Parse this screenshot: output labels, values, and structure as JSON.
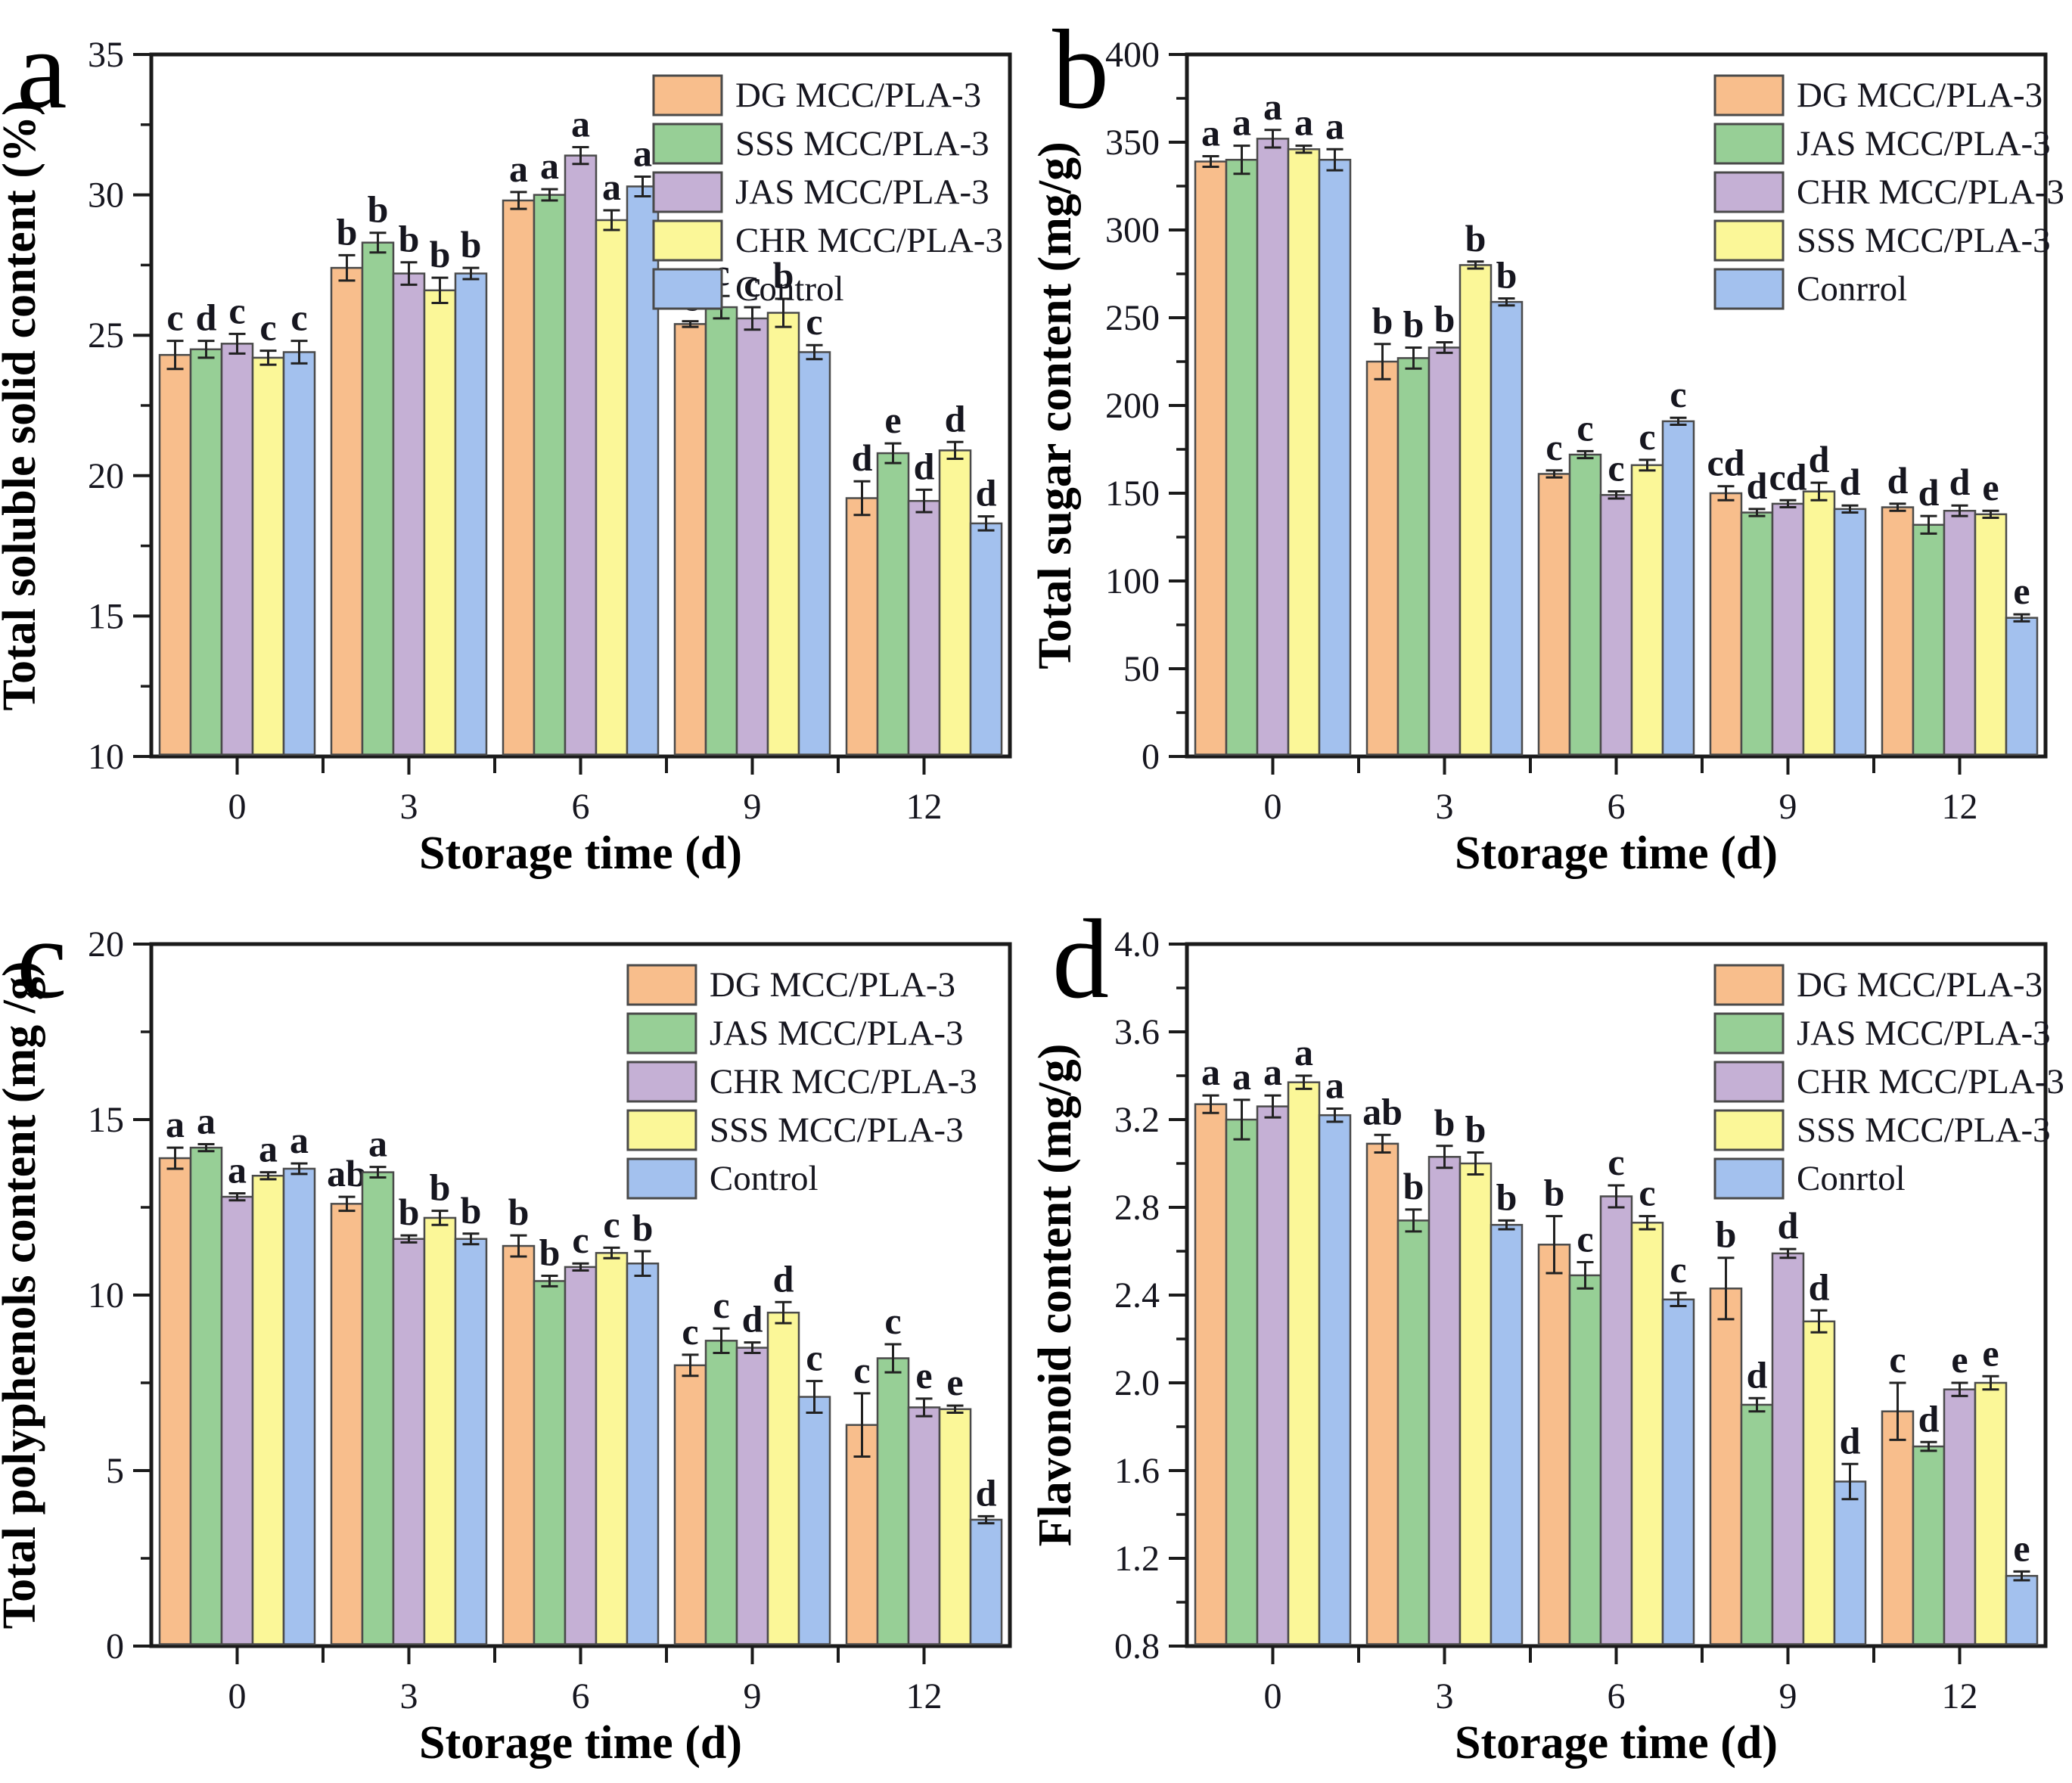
{
  "figure": {
    "xlabel": "Storage time (d)",
    "categories": [
      "0",
      "3",
      "6",
      "9",
      "12"
    ],
    "bar_outline_color": "#4a4a4a",
    "axis_color": "#1a1a1a",
    "text_color": "#16161f",
    "series_colors": [
      "#F8BE8C",
      "#97CF96",
      "#C5B0D5",
      "#FBF798",
      "#A3C1EE"
    ]
  },
  "chart_data": [
    {
      "type": "bar",
      "panel_letter": "a",
      "ylabel": "Total soluble solid content (%)",
      "xlabel": "Storage time (d)",
      "categories": [
        "0",
        "3",
        "6",
        "9",
        "12"
      ],
      "ylim": [
        10,
        35
      ],
      "ytick_step": 5,
      "yminor_step": 2.5,
      "ydecimals": 0,
      "grid": false,
      "legend_position": "upper-right-inside",
      "series": [
        {
          "name": "DG MCC/PLA-3",
          "color": "#F8BE8C",
          "values": [
            24.3,
            27.4,
            29.8,
            25.4,
            19.2
          ],
          "errors": [
            0.5,
            0.45,
            0.3,
            0.1,
            0.6
          ],
          "letters": [
            "c",
            "b",
            "a",
            "c",
            "d"
          ]
        },
        {
          "name": "SSS MCC/PLA-3",
          "color": "#97CF96",
          "values": [
            24.5,
            28.3,
            30.0,
            26.0,
            20.8
          ],
          "errors": [
            0.3,
            0.35,
            0.2,
            0.4,
            0.35
          ],
          "letters": [
            "d",
            "b",
            "a",
            "c",
            "e"
          ]
        },
        {
          "name": "JAS MCC/PLA-3",
          "color": "#C5B0D5",
          "values": [
            24.7,
            27.2,
            31.4,
            25.6,
            19.1
          ],
          "errors": [
            0.35,
            0.4,
            0.3,
            0.4,
            0.4
          ],
          "letters": [
            "c",
            "b",
            "a",
            "c",
            "d"
          ]
        },
        {
          "name": "CHR MCC/PLA-3",
          "color": "#FBF798",
          "values": [
            24.2,
            26.6,
            29.1,
            25.8,
            20.9
          ],
          "errors": [
            0.25,
            0.45,
            0.35,
            0.5,
            0.3
          ],
          "letters": [
            "c",
            "b",
            "a",
            "b",
            "d"
          ]
        },
        {
          "name": "Control",
          "color": "#A3C1EE",
          "values": [
            24.4,
            27.2,
            30.3,
            24.4,
            18.3
          ],
          "errors": [
            0.4,
            0.2,
            0.35,
            0.25,
            0.25
          ],
          "letters": [
            "c",
            "b",
            "a",
            "c",
            "d"
          ]
        }
      ]
    },
    {
      "type": "bar",
      "panel_letter": "b",
      "ylabel": "Total sugar content (mg/g)",
      "xlabel": "Storage time (d)",
      "categories": [
        "0",
        "3",
        "6",
        "9",
        "12"
      ],
      "ylim": [
        0,
        400
      ],
      "ytick_step": 50,
      "yminor_step": 25,
      "ydecimals": 0,
      "grid": false,
      "legend_position": "upper-right-inside",
      "series": [
        {
          "name": "DG MCC/PLA-3",
          "color": "#F8BE8C",
          "values": [
            339,
            225,
            161,
            150,
            142
          ],
          "errors": [
            3,
            10,
            2,
            4,
            2
          ],
          "letters": [
            "a",
            "b",
            "c",
            "cd",
            "d"
          ]
        },
        {
          "name": "JAS  MCC/PLA-3",
          "color": "#97CF96",
          "values": [
            340,
            227,
            172,
            139,
            132
          ],
          "errors": [
            8,
            6,
            2,
            2,
            5
          ],
          "letters": [
            "a",
            "b",
            "c",
            "d",
            "d"
          ]
        },
        {
          "name": "CHR  MCC/PLA-3",
          "color": "#C5B0D5",
          "values": [
            352,
            233,
            149,
            144,
            140
          ],
          "errors": [
            5,
            3,
            2,
            2,
            3
          ],
          "letters": [
            "a",
            "b",
            "c",
            "cd",
            "d"
          ]
        },
        {
          "name": "SSS  MCC/PLA-3",
          "color": "#FBF798",
          "values": [
            346,
            280,
            166,
            151,
            138
          ],
          "errors": [
            2,
            2,
            3,
            5,
            2
          ],
          "letters": [
            "a",
            "b",
            "c",
            "d",
            "e"
          ]
        },
        {
          "name": "Conrrol",
          "color": "#A3C1EE",
          "values": [
            340,
            259,
            191,
            141,
            79
          ],
          "errors": [
            6,
            2,
            2,
            2,
            2
          ],
          "letters": [
            "a",
            "b",
            "c",
            "d",
            "e"
          ]
        }
      ]
    },
    {
      "type": "bar",
      "panel_letter": "c",
      "ylabel": "Total polyphenols content (mg /g)",
      "xlabel": "Storage time (d)",
      "categories": [
        "0",
        "3",
        "6",
        "9",
        "12"
      ],
      "ylim": [
        0,
        20
      ],
      "ytick_step": 5,
      "yminor_step": 2.5,
      "ydecimals": 0,
      "grid": false,
      "legend_position": "upper-right-inside",
      "series": [
        {
          "name": "DG MCC/PLA-3",
          "color": "#F8BE8C",
          "values": [
            13.9,
            12.6,
            11.4,
            8.0,
            6.3
          ],
          "errors": [
            0.3,
            0.2,
            0.3,
            0.3,
            0.9
          ],
          "letters": [
            "a",
            "ab",
            "b",
            "c",
            "c"
          ]
        },
        {
          "name": "JAS MCC/PLA-3",
          "color": "#97CF96",
          "values": [
            14.2,
            13.5,
            10.4,
            8.7,
            8.2
          ],
          "errors": [
            0.1,
            0.15,
            0.15,
            0.35,
            0.4
          ],
          "letters": [
            "a",
            "a",
            "b",
            "c",
            "c"
          ]
        },
        {
          "name": "CHR MCC/PLA-3",
          "color": "#C5B0D5",
          "values": [
            12.8,
            11.6,
            10.8,
            8.5,
            6.8
          ],
          "errors": [
            0.1,
            0.1,
            0.1,
            0.15,
            0.25
          ],
          "letters": [
            "a",
            "b",
            "c",
            "d",
            "e"
          ]
        },
        {
          "name": "SSS MCC/PLA-3",
          "color": "#FBF798",
          "values": [
            13.4,
            12.2,
            11.2,
            9.5,
            6.75
          ],
          "errors": [
            0.1,
            0.2,
            0.15,
            0.3,
            0.1
          ],
          "letters": [
            "a",
            "b",
            "c",
            "d",
            "e"
          ]
        },
        {
          "name": "Control",
          "color": "#A3C1EE",
          "values": [
            13.6,
            11.6,
            10.9,
            7.1,
            3.6
          ],
          "errors": [
            0.15,
            0.15,
            0.35,
            0.45,
            0.1
          ],
          "letters": [
            "a",
            "b",
            "b",
            "c",
            "d"
          ]
        }
      ]
    },
    {
      "type": "bar",
      "panel_letter": "d",
      "ylabel": "Flavonoid content (mg/g)",
      "xlabel": "Storage time (d)",
      "categories": [
        "0",
        "3",
        "6",
        "9",
        "12"
      ],
      "ylim": [
        0.8,
        4.0
      ],
      "ytick_step": 0.4,
      "yminor_step": 0.2,
      "ydecimals": 1,
      "grid": false,
      "legend_position": "upper-right-inside",
      "series": [
        {
          "name": "DG MCC/PLA-3",
          "color": "#F8BE8C",
          "values": [
            3.27,
            3.09,
            2.63,
            2.43,
            1.87
          ],
          "errors": [
            0.04,
            0.04,
            0.13,
            0.14,
            0.13
          ],
          "letters": [
            "a",
            "ab",
            "b",
            "b",
            "c"
          ]
        },
        {
          "name": "JAS MCC/PLA-3",
          "color": "#97CF96",
          "values": [
            3.2,
            2.74,
            2.49,
            1.9,
            1.71
          ],
          "errors": [
            0.09,
            0.05,
            0.06,
            0.03,
            0.02
          ],
          "letters": [
            "a",
            "b",
            "c",
            "d",
            "d"
          ]
        },
        {
          "name": "CHR MCC/PLA-3",
          "color": "#C5B0D5",
          "values": [
            3.26,
            3.03,
            2.85,
            2.59,
            1.97
          ],
          "errors": [
            0.05,
            0.05,
            0.05,
            0.02,
            0.03
          ],
          "letters": [
            "a",
            "b",
            "c",
            "d",
            "e"
          ]
        },
        {
          "name": "SSS MCC/PLA-3",
          "color": "#FBF798",
          "values": [
            3.37,
            3.0,
            2.73,
            2.28,
            2.0
          ],
          "errors": [
            0.03,
            0.05,
            0.03,
            0.05,
            0.03
          ],
          "letters": [
            "a",
            "b",
            "c",
            "d",
            "e"
          ]
        },
        {
          "name": "Conrtol",
          "color": "#A3C1EE",
          "values": [
            3.22,
            2.72,
            2.38,
            1.55,
            1.12
          ],
          "errors": [
            0.03,
            0.02,
            0.03,
            0.08,
            0.02
          ],
          "letters": [
            "a",
            "b",
            "c",
            "d",
            "e"
          ]
        }
      ]
    }
  ]
}
